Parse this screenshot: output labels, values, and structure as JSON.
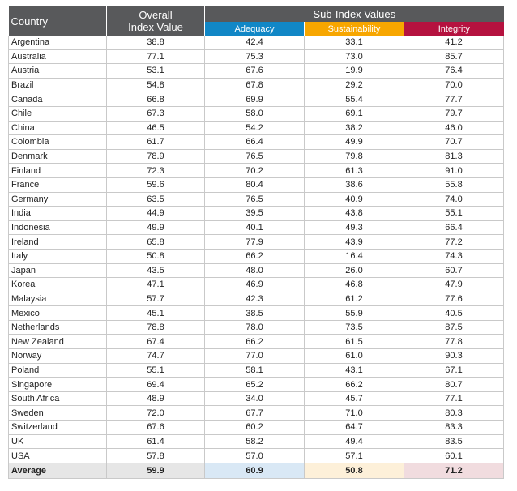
{
  "header": {
    "country": "Country",
    "overall_line1": "Overall",
    "overall_line2": "Index Value",
    "sub_index": "Sub-Index Values",
    "adequacy": "Adequacy",
    "sustainability": "Sustainability",
    "integrity": "Integrity"
  },
  "colors": {
    "header_gray": "#58595b",
    "adequacy": "#1187c6",
    "sustainability": "#f7a600",
    "integrity": "#b5123f"
  },
  "rows": [
    {
      "country": "Argentina",
      "overall": "38.8",
      "adequacy": "42.4",
      "sustainability": "33.1",
      "integrity": "41.2"
    },
    {
      "country": "Australia",
      "overall": "77.1",
      "adequacy": "75.3",
      "sustainability": "73.0",
      "integrity": "85.7"
    },
    {
      "country": "Austria",
      "overall": "53.1",
      "adequacy": "67.6",
      "sustainability": "19.9",
      "integrity": "76.4"
    },
    {
      "country": "Brazil",
      "overall": "54.8",
      "adequacy": "67.8",
      "sustainability": "29.2",
      "integrity": "70.0"
    },
    {
      "country": "Canada",
      "overall": "66.8",
      "adequacy": "69.9",
      "sustainability": "55.4",
      "integrity": "77.7"
    },
    {
      "country": "Chile",
      "overall": "67.3",
      "adequacy": "58.0",
      "sustainability": "69.1",
      "integrity": "79.7"
    },
    {
      "country": "China",
      "overall": "46.5",
      "adequacy": "54.2",
      "sustainability": "38.2",
      "integrity": "46.0"
    },
    {
      "country": "Colombia",
      "overall": "61.7",
      "adequacy": "66.4",
      "sustainability": "49.9",
      "integrity": "70.7"
    },
    {
      "country": "Denmark",
      "overall": "78.9",
      "adequacy": "76.5",
      "sustainability": "79.8",
      "integrity": "81.3"
    },
    {
      "country": "Finland",
      "overall": "72.3",
      "adequacy": "70.2",
      "sustainability": "61.3",
      "integrity": "91.0"
    },
    {
      "country": "France",
      "overall": "59.6",
      "adequacy": "80.4",
      "sustainability": "38.6",
      "integrity": "55.8"
    },
    {
      "country": "Germany",
      "overall": "63.5",
      "adequacy": "76.5",
      "sustainability": "40.9",
      "integrity": "74.0"
    },
    {
      "country": "India",
      "overall": "44.9",
      "adequacy": "39.5",
      "sustainability": "43.8",
      "integrity": "55.1"
    },
    {
      "country": "Indonesia",
      "overall": "49.9",
      "adequacy": "40.1",
      "sustainability": "49.3",
      "integrity": "66.4"
    },
    {
      "country": "Ireland",
      "overall": "65.8",
      "adequacy": "77.9",
      "sustainability": "43.9",
      "integrity": "77.2"
    },
    {
      "country": "Italy",
      "overall": "50.8",
      "adequacy": "66.2",
      "sustainability": "16.4",
      "integrity": "74.3"
    },
    {
      "country": "Japan",
      "overall": "43.5",
      "adequacy": "48.0",
      "sustainability": "26.0",
      "integrity": "60.7"
    },
    {
      "country": "Korea",
      "overall": "47.1",
      "adequacy": "46.9",
      "sustainability": "46.8",
      "integrity": "47.9"
    },
    {
      "country": "Malaysia",
      "overall": "57.7",
      "adequacy": "42.3",
      "sustainability": "61.2",
      "integrity": "77.6"
    },
    {
      "country": "Mexico",
      "overall": "45.1",
      "adequacy": "38.5",
      "sustainability": "55.9",
      "integrity": "40.5"
    },
    {
      "country": "Netherlands",
      "overall": "78.8",
      "adequacy": "78.0",
      "sustainability": "73.5",
      "integrity": "87.5"
    },
    {
      "country": "New Zealand",
      "overall": "67.4",
      "adequacy": "66.2",
      "sustainability": "61.5",
      "integrity": "77.8"
    },
    {
      "country": "Norway",
      "overall": "74.7",
      "adequacy": "77.0",
      "sustainability": "61.0",
      "integrity": "90.3"
    },
    {
      "country": "Poland",
      "overall": "55.1",
      "adequacy": "58.1",
      "sustainability": "43.1",
      "integrity": "67.1"
    },
    {
      "country": "Singapore",
      "overall": "69.4",
      "adequacy": "65.2",
      "sustainability": "66.2",
      "integrity": "80.7"
    },
    {
      "country": "South Africa",
      "overall": "48.9",
      "adequacy": "34.0",
      "sustainability": "45.7",
      "integrity": "77.1"
    },
    {
      "country": "Sweden",
      "overall": "72.0",
      "adequacy": "67.7",
      "sustainability": "71.0",
      "integrity": "80.3"
    },
    {
      "country": "Switzerland",
      "overall": "67.6",
      "adequacy": "60.2",
      "sustainability": "64.7",
      "integrity": "83.3"
    },
    {
      "country": "UK",
      "overall": "61.4",
      "adequacy": "58.2",
      "sustainability": "49.4",
      "integrity": "83.5"
    },
    {
      "country": "USA",
      "overall": "57.8",
      "adequacy": "57.0",
      "sustainability": "57.1",
      "integrity": "60.1"
    }
  ],
  "average": {
    "label": "Average",
    "overall": "59.9",
    "adequacy": "60.9",
    "sustainability": "50.8",
    "integrity": "71.2"
  }
}
